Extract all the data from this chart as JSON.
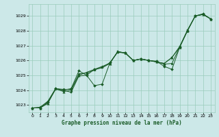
{
  "title": "Graphe pression niveau de la mer (hPa)",
  "bg_color": "#cce8e8",
  "grid_color": "#99ccbb",
  "line_color": "#1a5c28",
  "xlim": [
    -0.5,
    23.5
  ],
  "ylim": [
    1022.5,
    1029.8
  ],
  "xticks": [
    0,
    1,
    2,
    3,
    4,
    5,
    6,
    7,
    8,
    9,
    10,
    11,
    12,
    13,
    14,
    15,
    16,
    17,
    18,
    19,
    20,
    21,
    22,
    23
  ],
  "yticks": [
    1023,
    1024,
    1025,
    1026,
    1027,
    1028,
    1029
  ],
  "series": [
    [
      1022.8,
      1022.8,
      1023.1,
      1024.1,
      1023.9,
      1024.0,
      1025.0,
      1025.2,
      1025.4,
      1025.6,
      1025.8,
      1026.6,
      1026.5,
      1026.0,
      1026.1,
      1026.0,
      1025.9,
      1025.8,
      1026.2,
      1026.9,
      1028.0,
      1029.0,
      1029.1,
      1028.8
    ],
    [
      1022.8,
      1022.8,
      1023.2,
      1024.1,
      1024.0,
      1024.1,
      1025.3,
      1025.0,
      1024.3,
      1024.4,
      1025.85,
      1026.55,
      1026.5,
      1026.0,
      1026.1,
      1026.0,
      1025.95,
      1025.6,
      1025.4,
      1026.9,
      1028.0,
      1029.0,
      1029.15,
      1028.8
    ],
    [
      1022.8,
      1022.8,
      1023.15,
      1024.05,
      1024.0,
      1023.85,
      1024.95,
      1025.0,
      1025.4,
      1025.5,
      1025.8,
      1026.6,
      1026.5,
      1026.0,
      1026.1,
      1026.0,
      1025.9,
      1025.8,
      1026.2,
      1026.95,
      1028.05,
      1029.0,
      1029.1,
      1028.8
    ],
    [
      1022.8,
      1022.85,
      1023.25,
      1024.1,
      1024.05,
      1024.05,
      1025.1,
      1025.15,
      1025.35,
      1025.55,
      1025.85,
      1026.58,
      1026.5,
      1026.0,
      1026.1,
      1026.0,
      1025.92,
      1025.75,
      1025.8,
      1026.92,
      1028.02,
      1029.0,
      1029.12,
      1028.8
    ]
  ]
}
